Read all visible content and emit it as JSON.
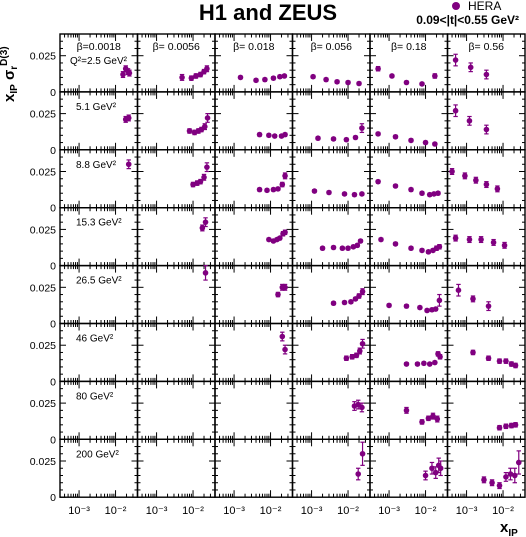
{
  "title": "H1 and ZEUS",
  "t_range_label": "0.09<|t|<0.55 GeV²",
  "chart_data": {
    "type": "scatter",
    "ylabel": "x_IP σ_r^D(3)",
    "xlabel": "x_IP",
    "x_scale": "log",
    "xlim": [
      0.0003,
      0.04
    ],
    "ylim": [
      0,
      0.04
    ],
    "y_ticks": [
      "0",
      "0.025"
    ],
    "x_tick_labels": [
      "10⁻³",
      "10⁻²"
    ],
    "legend": {
      "entries": [
        "HERA"
      ],
      "placement": "top-right",
      "marker_color": "#800080"
    },
    "columns": [
      {
        "beta_label": "β=0.0018",
        "beta": 0.0018
      },
      {
        "beta_label": "β= 0.0056",
        "beta": 0.0056
      },
      {
        "beta_label": "β= 0.018",
        "beta": 0.018
      },
      {
        "beta_label": "β= 0.056",
        "beta": 0.056
      },
      {
        "beta_label": "β= 0.18",
        "beta": 0.18
      },
      {
        "beta_label": "β= 0.56",
        "beta": 0.56
      }
    ],
    "rows": [
      {
        "q2_label": "Q²=2.5 GeV²",
        "q2": 2.5
      },
      {
        "q2_label": "5.1 GeV²",
        "q2": 5.1
      },
      {
        "q2_label": "8.8 GeV²",
        "q2": 8.8
      },
      {
        "q2_label": "15.3 GeV²",
        "q2": 15.3
      },
      {
        "q2_label": "26.5 GeV²",
        "q2": 26.5
      },
      {
        "q2_label": "46 GeV²",
        "q2": 46
      },
      {
        "q2_label": "80 GeV²",
        "q2": 80
      },
      {
        "q2_label": "200 GeV²",
        "q2": 200
      }
    ],
    "panels": [
      {
        "row": 0,
        "col": 0,
        "points": [
          [
            0.016,
            0.012,
            0.002
          ],
          [
            0.019,
            0.016,
            0.002
          ],
          [
            0.022,
            0.014,
            0.002
          ],
          [
            0.024,
            0.013,
            0.002
          ]
        ]
      },
      {
        "row": 0,
        "col": 1,
        "points": [
          [
            0.005,
            0.01,
            0.002
          ],
          [
            0.009,
            0.0095,
            0.0015
          ],
          [
            0.012,
            0.011,
            0.0015
          ],
          [
            0.016,
            0.012,
            0.0015
          ],
          [
            0.02,
            0.014,
            0.0015
          ],
          [
            0.024,
            0.016,
            0.002
          ]
        ]
      },
      {
        "row": 0,
        "col": 2,
        "points": [
          [
            0.0015,
            0.01,
            0.001
          ],
          [
            0.004,
            0.008,
            0.001
          ],
          [
            0.007,
            0.0085,
            0.001
          ],
          [
            0.012,
            0.0095,
            0.001
          ],
          [
            0.018,
            0.0105,
            0.001
          ],
          [
            0.024,
            0.011,
            0.001
          ]
        ]
      },
      {
        "row": 0,
        "col": 3,
        "points": [
          [
            0.0011,
            0.0105,
            0.001
          ],
          [
            0.0025,
            0.0085,
            0.001
          ],
          [
            0.005,
            0.007,
            0.001
          ],
          [
            0.01,
            0.0065,
            0.001
          ],
          [
            0.02,
            0.0058,
            0.001
          ]
        ]
      },
      {
        "row": 0,
        "col": 4,
        "points": [
          [
            0.0005,
            0.016,
            0.0015
          ],
          [
            0.0012,
            0.011,
            0.001
          ],
          [
            0.003,
            0.0065,
            0.001
          ],
          [
            0.008,
            0.0055,
            0.001
          ],
          [
            0.018,
            0.011,
            0.0015
          ]
        ]
      },
      {
        "row": 0,
        "col": 5,
        "points": [
          [
            0.0005,
            0.022,
            0.004
          ],
          [
            0.0013,
            0.017,
            0.003
          ],
          [
            0.0035,
            0.012,
            0.003
          ]
        ]
      },
      {
        "row": 1,
        "col": 0,
        "points": [
          [
            0.019,
            0.021,
            0.002
          ],
          [
            0.023,
            0.022,
            0.002
          ]
        ]
      },
      {
        "row": 1,
        "col": 1,
        "points": [
          [
            0.008,
            0.013,
            0.0015
          ],
          [
            0.011,
            0.012,
            0.0015
          ],
          [
            0.014,
            0.013,
            0.0015
          ],
          [
            0.017,
            0.014,
            0.0015
          ],
          [
            0.021,
            0.016,
            0.002
          ],
          [
            0.025,
            0.022,
            0.003
          ]
        ]
      },
      {
        "row": 1,
        "col": 2,
        "points": [
          [
            0.005,
            0.0105,
            0.001
          ],
          [
            0.009,
            0.01,
            0.001
          ],
          [
            0.013,
            0.0095,
            0.001
          ],
          [
            0.02,
            0.0095,
            0.001
          ],
          [
            0.025,
            0.0105,
            0.001
          ]
        ]
      },
      {
        "row": 1,
        "col": 3,
        "points": [
          [
            0.0015,
            0.008,
            0.001
          ],
          [
            0.004,
            0.0075,
            0.001
          ],
          [
            0.009,
            0.007,
            0.001
          ],
          [
            0.016,
            0.0085,
            0.001
          ],
          [
            0.024,
            0.015,
            0.003
          ]
        ]
      },
      {
        "row": 1,
        "col": 4,
        "points": [
          [
            0.0005,
            0.011,
            0.001
          ],
          [
            0.0015,
            0.009,
            0.001
          ],
          [
            0.004,
            0.0065,
            0.001
          ],
          [
            0.01,
            0.005,
            0.001
          ],
          [
            0.018,
            0.004,
            0.001
          ]
        ]
      },
      {
        "row": 1,
        "col": 5,
        "points": [
          [
            0.0005,
            0.027,
            0.004
          ],
          [
            0.0012,
            0.02,
            0.003
          ],
          [
            0.0035,
            0.014,
            0.003
          ]
        ]
      },
      {
        "row": 2,
        "col": 0,
        "points": [
          [
            0.023,
            0.03,
            0.003
          ]
        ]
      },
      {
        "row": 2,
        "col": 1,
        "points": [
          [
            0.01,
            0.016,
            0.0015
          ],
          [
            0.013,
            0.017,
            0.0015
          ],
          [
            0.016,
            0.018,
            0.0015
          ],
          [
            0.02,
            0.021,
            0.002
          ],
          [
            0.024,
            0.028,
            0.003
          ]
        ]
      },
      {
        "row": 2,
        "col": 2,
        "points": [
          [
            0.005,
            0.0125,
            0.001
          ],
          [
            0.008,
            0.012,
            0.001
          ],
          [
            0.012,
            0.0125,
            0.001
          ],
          [
            0.016,
            0.013,
            0.001
          ],
          [
            0.021,
            0.016,
            0.0015
          ],
          [
            0.025,
            0.022,
            0.002
          ]
        ]
      },
      {
        "row": 2,
        "col": 3,
        "points": [
          [
            0.0012,
            0.0115,
            0.001
          ],
          [
            0.003,
            0.0105,
            0.001
          ],
          [
            0.008,
            0.0095,
            0.001
          ],
          [
            0.015,
            0.009,
            0.001
          ],
          [
            0.024,
            0.0095,
            0.001
          ]
        ]
      },
      {
        "row": 2,
        "col": 4,
        "points": [
          [
            0.0005,
            0.018,
            0.001
          ],
          [
            0.0015,
            0.015,
            0.001
          ],
          [
            0.004,
            0.0125,
            0.001
          ],
          [
            0.008,
            0.01,
            0.001
          ],
          [
            0.013,
            0.009,
            0.001
          ],
          [
            0.017,
            0.0095,
            0.001
          ],
          [
            0.022,
            0.01,
            0.001
          ]
        ]
      },
      {
        "row": 2,
        "col": 5,
        "points": [
          [
            0.0004,
            0.025,
            0.002
          ],
          [
            0.0009,
            0.022,
            0.002
          ],
          [
            0.0018,
            0.019,
            0.002
          ],
          [
            0.0035,
            0.016,
            0.002
          ],
          [
            0.007,
            0.013,
            0.002
          ]
        ]
      },
      {
        "row": 3,
        "col": 1,
        "points": [
          [
            0.018,
            0.026,
            0.002
          ],
          [
            0.022,
            0.03,
            0.003
          ]
        ]
      },
      {
        "row": 3,
        "col": 2,
        "points": [
          [
            0.009,
            0.018,
            0.001
          ],
          [
            0.012,
            0.017,
            0.001
          ],
          [
            0.015,
            0.018,
            0.001
          ],
          [
            0.018,
            0.019,
            0.001
          ],
          [
            0.022,
            0.022,
            0.0015
          ],
          [
            0.025,
            0.023,
            0.0015
          ]
        ]
      },
      {
        "row": 3,
        "col": 3,
        "points": [
          [
            0.002,
            0.012,
            0.001
          ],
          [
            0.004,
            0.0125,
            0.001
          ],
          [
            0.007,
            0.012,
            0.001
          ],
          [
            0.01,
            0.012,
            0.001
          ],
          [
            0.014,
            0.013,
            0.001
          ],
          [
            0.018,
            0.014,
            0.001
          ],
          [
            0.022,
            0.017,
            0.001
          ]
        ]
      },
      {
        "row": 3,
        "col": 4,
        "points": [
          [
            0.0006,
            0.018,
            0.001
          ],
          [
            0.0015,
            0.015,
            0.001
          ],
          [
            0.004,
            0.012,
            0.001
          ],
          [
            0.008,
            0.0105,
            0.001
          ],
          [
            0.012,
            0.0095,
            0.001
          ],
          [
            0.016,
            0.0105,
            0.001
          ],
          [
            0.02,
            0.012,
            0.0015
          ],
          [
            0.024,
            0.013,
            0.0015
          ]
        ]
      },
      {
        "row": 3,
        "col": 5,
        "points": [
          [
            0.0005,
            0.019,
            0.002
          ],
          [
            0.0012,
            0.018,
            0.002
          ],
          [
            0.0025,
            0.018,
            0.002
          ],
          [
            0.0055,
            0.016,
            0.002
          ],
          [
            0.011,
            0.014,
            0.002
          ]
        ]
      },
      {
        "row": 4,
        "col": 1,
        "points": [
          [
            0.022,
            0.035,
            0.005
          ]
        ]
      },
      {
        "row": 4,
        "col": 2,
        "points": [
          [
            0.016,
            0.02,
            0.0015
          ],
          [
            0.021,
            0.025,
            0.002
          ],
          [
            0.025,
            0.025,
            0.002
          ]
        ]
      },
      {
        "row": 4,
        "col": 3,
        "points": [
          [
            0.004,
            0.014,
            0.001
          ],
          [
            0.008,
            0.0145,
            0.001
          ],
          [
            0.012,
            0.015,
            0.001
          ],
          [
            0.016,
            0.017,
            0.001
          ],
          [
            0.02,
            0.019,
            0.0015
          ],
          [
            0.025,
            0.022,
            0.002
          ]
        ]
      },
      {
        "row": 4,
        "col": 4,
        "points": [
          [
            0.001,
            0.0125,
            0.001
          ],
          [
            0.003,
            0.012,
            0.001
          ],
          [
            0.007,
            0.011,
            0.001
          ],
          [
            0.011,
            0.009,
            0.001
          ],
          [
            0.015,
            0.0095,
            0.001
          ],
          [
            0.019,
            0.01,
            0.001
          ],
          [
            0.024,
            0.016,
            0.004
          ]
        ]
      },
      {
        "row": 4,
        "col": 5,
        "points": [
          [
            0.0006,
            0.023,
            0.004
          ],
          [
            0.0015,
            0.017,
            0.002
          ],
          [
            0.004,
            0.012,
            0.003
          ]
        ]
      },
      {
        "row": 5,
        "col": 2,
        "points": [
          [
            0.021,
            0.031,
            0.003
          ],
          [
            0.025,
            0.022,
            0.003
          ]
        ]
      },
      {
        "row": 5,
        "col": 3,
        "points": [
          [
            0.009,
            0.016,
            0.0015
          ],
          [
            0.013,
            0.017,
            0.0015
          ],
          [
            0.017,
            0.018,
            0.0015
          ],
          [
            0.021,
            0.021,
            0.002
          ],
          [
            0.025,
            0.026,
            0.003
          ]
        ]
      },
      {
        "row": 5,
        "col": 4,
        "points": [
          [
            0.003,
            0.012,
            0.001
          ],
          [
            0.006,
            0.012,
            0.001
          ],
          [
            0.009,
            0.0125,
            0.001
          ],
          [
            0.013,
            0.012,
            0.001
          ],
          [
            0.018,
            0.013,
            0.001
          ],
          [
            0.022,
            0.019,
            0.0015
          ],
          [
            0.025,
            0.017,
            0.0015
          ]
        ]
      },
      {
        "row": 5,
        "col": 5,
        "points": [
          [
            0.0015,
            0.02,
            0.0015
          ],
          [
            0.004,
            0.016,
            0.0015
          ],
          [
            0.008,
            0.014,
            0.0015
          ],
          [
            0.012,
            0.014,
            0.0015
          ],
          [
            0.017,
            0.012,
            0.0015
          ],
          [
            0.022,
            0.011,
            0.0015
          ]
        ]
      },
      {
        "row": 6,
        "col": 3,
        "points": [
          [
            0.015,
            0.023,
            0.003
          ],
          [
            0.019,
            0.024,
            0.003
          ],
          [
            0.024,
            0.022,
            0.003
          ]
        ]
      },
      {
        "row": 6,
        "col": 4,
        "points": [
          [
            0.003,
            0.02,
            0.002
          ],
          [
            0.008,
            0.012,
            0.0015
          ],
          [
            0.012,
            0.0145,
            0.0015
          ],
          [
            0.016,
            0.016,
            0.002
          ],
          [
            0.021,
            0.014,
            0.002
          ]
        ]
      },
      {
        "row": 6,
        "col": 5,
        "points": [
          [
            0.008,
            0.008,
            0.0015
          ],
          [
            0.012,
            0.009,
            0.0015
          ],
          [
            0.017,
            0.0095,
            0.0015
          ],
          [
            0.022,
            0.01,
            0.0015
          ]
        ]
      },
      {
        "row": 7,
        "col": 3,
        "points": [
          [
            0.019,
            0.016,
            0.004
          ],
          [
            0.025,
            0.03,
            0.008
          ]
        ]
      },
      {
        "row": 7,
        "col": 4,
        "points": [
          [
            0.01,
            0.015,
            0.003
          ],
          [
            0.015,
            0.02,
            0.004
          ],
          [
            0.019,
            0.017,
            0.004
          ],
          [
            0.023,
            0.022,
            0.005
          ],
          [
            0.026,
            0.02,
            0.005
          ]
        ]
      },
      {
        "row": 7,
        "col": 5,
        "points": [
          [
            0.003,
            0.012,
            0.002
          ],
          [
            0.005,
            0.01,
            0.002
          ],
          [
            0.008,
            0.008,
            0.002
          ],
          [
            0.012,
            0.014,
            0.003
          ],
          [
            0.016,
            0.016,
            0.004
          ],
          [
            0.021,
            0.015,
            0.005
          ],
          [
            0.027,
            0.024,
            0.008
          ]
        ]
      }
    ]
  }
}
